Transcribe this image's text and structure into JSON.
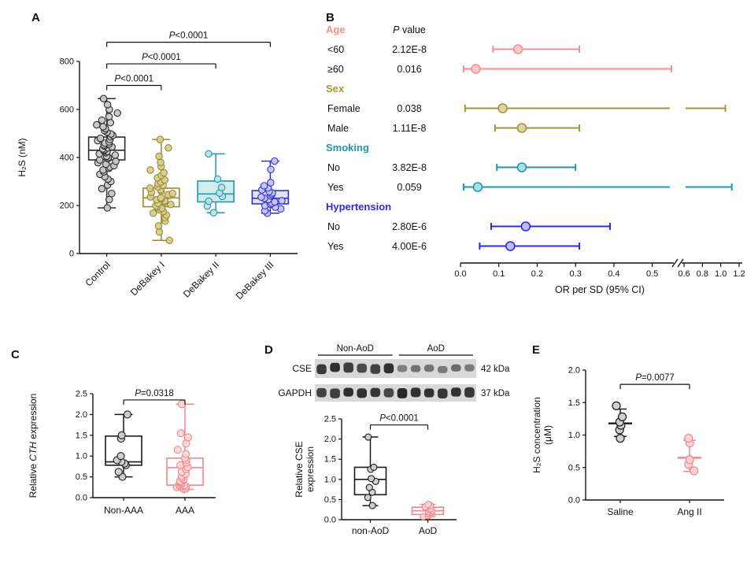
{
  "figure": {
    "panels": {
      "A": {
        "label": "A"
      },
      "B": {
        "label": "B"
      },
      "C": {
        "label": "C"
      },
      "D": {
        "label": "D"
      },
      "E": {
        "label": "E"
      }
    },
    "blot": {
      "group_labels": [
        "Non-AoD",
        "AoD"
      ],
      "rows": [
        {
          "protein": "CSE",
          "weight": "42 kDa"
        },
        {
          "protein": "GAPDH",
          "weight": "37 kDa"
        }
      ],
      "lanes_per_group": 6
    }
  },
  "chart_data": [
    {
      "id": "A",
      "type": "boxplot-scatter",
      "ylabel_lines": [
        [
          {
            "t": "H₂S (nM)",
            "i": false
          }
        ]
      ],
      "ylim": [
        0,
        800
      ],
      "yticks": [
        0,
        200,
        400,
        600,
        800
      ],
      "ydecimals": 0,
      "categories": [
        "Control",
        "DeBakey I",
        "DeBakey II",
        "DeBakey III"
      ],
      "strokes": [
        "#2b2b2b",
        "#9a8c2e",
        "#1b9aab",
        "#3030dd"
      ],
      "fills": [
        "#c8c8c8",
        "#d6cd8f",
        "#bfe3e9",
        "#c6c6f6"
      ],
      "box_fills": [
        "none",
        "none",
        "#d2ebef",
        "#e2e2fb"
      ],
      "boxes": [
        {
          "q1": 390,
          "median": 430,
          "q3": 485,
          "whisker_low": 190,
          "whisker_high": 645
        },
        {
          "q1": 195,
          "median": 232,
          "q3": 272,
          "whisker_low": 55,
          "whisker_high": 475
        },
        {
          "q1": 215,
          "median": 248,
          "q3": 302,
          "whisker_low": 170,
          "whisker_high": 415
        },
        {
          "q1": 207,
          "median": 230,
          "q3": 262,
          "whisker_low": 168,
          "whisker_high": 385
        }
      ],
      "points": [
        [
          190,
          225,
          250,
          270,
          285,
          300,
          310,
          320,
          330,
          340,
          348,
          355,
          360,
          366,
          372,
          378,
          384,
          390,
          395,
          400,
          405,
          410,
          415,
          420,
          424,
          428,
          432,
          436,
          440,
          444,
          448,
          452,
          456,
          460,
          465,
          470,
          475,
          480,
          486,
          492,
          498,
          505,
          512,
          520,
          528,
          536,
          545,
          555,
          570,
          585,
          600,
          620,
          645
        ],
        [
          55,
          90,
          115,
          135,
          150,
          160,
          168,
          175,
          182,
          188,
          194,
          199,
          204,
          209,
          214,
          219,
          224,
          228,
          232,
          236,
          240,
          245,
          250,
          255,
          260,
          266,
          272,
          278,
          284,
          291,
          298,
          306,
          315,
          325,
          336,
          348,
          362,
          380,
          405,
          440,
          475
        ],
        [
          170,
          198,
          218,
          238,
          252,
          275,
          310,
          415
        ],
        [
          168,
          178,
          186,
          193,
          199,
          205,
          210,
          215,
          220,
          225,
          230,
          235,
          240,
          246,
          252,
          258,
          265,
          273,
          282,
          295,
          350,
          385
        ]
      ],
      "significance": [
        {
          "from": 0,
          "to": 1,
          "label": "P<0.0001",
          "y": 700
        },
        {
          "from": 0,
          "to": 2,
          "label": "P<0.0001",
          "y": 790
        },
        {
          "from": 0,
          "to": 3,
          "label": "P<0.0001",
          "y": 880
        }
      ]
    },
    {
      "id": "B",
      "type": "forest",
      "xlabel": "OR per SD (95% CI)",
      "pvalue_header": "P value",
      "xticks_left": [
        0,
        0.1,
        0.2,
        0.3,
        0.4,
        0.5
      ],
      "xticks_right": [
        0.6,
        0.8,
        1.0,
        1.2
      ],
      "axis_break": {
        "left_max": 0.55,
        "right_min": 0.6,
        "right_max": 1.2
      },
      "rows": [
        {
          "type": "header",
          "label": "Age",
          "color": "#f58f93"
        },
        {
          "type": "data",
          "label": "<60",
          "p": "2.12E-8",
          "or": 0.15,
          "lo": 0.085,
          "hi": 0.31,
          "color": "#f58f93",
          "fill": "#fbc9cb"
        },
        {
          "type": "data",
          "label": "≥60",
          "p": "0.016",
          "or": 0.04,
          "lo": 0.008,
          "hi": 0.55,
          "color": "#f58f93",
          "fill": "#fbc9cb"
        },
        {
          "type": "header",
          "label": "Sex",
          "color": "#a2953a"
        },
        {
          "type": "data",
          "label": "Female",
          "p": "0.038",
          "or": 0.11,
          "lo": 0.012,
          "hi": 1.05,
          "color": "#a2953a",
          "fill": "#ddd6a2"
        },
        {
          "type": "data",
          "label": "Male",
          "p": "1.11E-8",
          "or": 0.16,
          "lo": 0.09,
          "hi": 0.31,
          "color": "#a2953a",
          "fill": "#ddd6a2"
        },
        {
          "type": "header",
          "label": "Smoking",
          "color": "#1b9aab"
        },
        {
          "type": "data",
          "label": "No",
          "p": "3.82E-8",
          "or": 0.16,
          "lo": 0.095,
          "hi": 0.3,
          "color": "#1b9aab",
          "fill": "#abdde4"
        },
        {
          "type": "data",
          "label": "Yes",
          "p": "0.059",
          "or": 0.045,
          "lo": 0.008,
          "hi": 1.12,
          "color": "#1b9aab",
          "fill": "#abdde4"
        },
        {
          "type": "header",
          "label": "Hypertension",
          "color": "#2a2aee"
        },
        {
          "type": "data",
          "label": "No",
          "p": "2.80E-6",
          "or": 0.17,
          "lo": 0.08,
          "hi": 0.39,
          "color": "#2a2aee",
          "fill": "#bcbcf8"
        },
        {
          "type": "data",
          "label": "Yes",
          "p": "4.00E-6",
          "or": 0.13,
          "lo": 0.05,
          "hi": 0.31,
          "color": "#2a2aee",
          "fill": "#bcbcf8"
        }
      ]
    },
    {
      "id": "C",
      "type": "boxplot-scatter",
      "ylabel_lines": [
        [
          {
            "t": "Relative ",
            "i": false
          },
          {
            "t": "CTH",
            "i": true
          },
          {
            "t": " expression",
            "i": false
          }
        ]
      ],
      "ylim": [
        0,
        2.5
      ],
      "yticks": [
        0,
        0.5,
        1.0,
        1.5,
        2.0,
        2.5
      ],
      "ydecimals": 1,
      "categories": [
        "Non-AAA",
        "AAA"
      ],
      "strokes": [
        "#1a1a1a",
        "#f4868a"
      ],
      "fills": [
        "#cfcfcf",
        "#fcd7d8"
      ],
      "box_fills": [
        "none",
        "none"
      ],
      "boxes": [
        {
          "q1": 0.78,
          "median": 0.86,
          "q3": 1.48,
          "whisker_low": 0.5,
          "whisker_high": 2.0
        },
        {
          "q1": 0.3,
          "median": 0.72,
          "q3": 0.95,
          "whisker_low": 0.2,
          "whisker_high": 2.25
        }
      ],
      "points": [
        [
          0.5,
          0.62,
          0.78,
          0.82,
          0.86,
          0.9,
          1.0,
          1.42,
          1.5,
          2.0
        ],
        [
          0.2,
          0.22,
          0.25,
          0.27,
          0.28,
          0.3,
          0.31,
          0.33,
          0.35,
          0.37,
          0.4,
          0.44,
          0.48,
          0.52,
          0.57,
          0.62,
          0.68,
          0.73,
          0.78,
          0.84,
          0.9,
          0.95,
          1.05,
          1.15,
          1.3,
          1.45,
          1.55,
          2.25
        ]
      ],
      "significance": [
        {
          "from": 0,
          "to": 1,
          "label": "P=0.0318",
          "y": 2.35
        }
      ]
    },
    {
      "id": "D",
      "type": "boxplot-scatter",
      "ylabel_lines": [
        [
          {
            "t": "Relative CSE",
            "i": false
          }
        ],
        [
          {
            "t": "expression",
            "i": false
          }
        ]
      ],
      "ylim": [
        0,
        2.5
      ],
      "yticks": [
        0,
        0.5,
        1.0,
        1.5,
        2.0,
        2.5
      ],
      "ydecimals": 1,
      "categories": [
        "non-AoD",
        "AoD"
      ],
      "strokes": [
        "#1a1a1a",
        "#f4868a"
      ],
      "fills": [
        "#cfcfcf",
        "#fcd7d8"
      ],
      "box_fills": [
        "none",
        "none"
      ],
      "boxes": [
        {
          "q1": 0.62,
          "median": 1.0,
          "q3": 1.3,
          "whisker_low": 0.35,
          "whisker_high": 2.05
        },
        {
          "q1": 0.13,
          "median": 0.22,
          "q3": 0.31,
          "whisker_low": 0.08,
          "whisker_high": 0.38
        }
      ],
      "points": [
        [
          0.35,
          0.55,
          0.68,
          0.8,
          0.95,
          1.02,
          1.25,
          1.3,
          2.05
        ],
        [
          0.08,
          0.1,
          0.13,
          0.16,
          0.18,
          0.2,
          0.22,
          0.25,
          0.27,
          0.3,
          0.32,
          0.35,
          0.38
        ]
      ],
      "significance": [
        {
          "from": 0,
          "to": 1,
          "label": "P<0.0001",
          "y": 2.35
        }
      ]
    },
    {
      "id": "E",
      "type": "dot-mean",
      "ylabel_lines": [
        [
          {
            "t": "H₂S concentration",
            "i": false
          }
        ],
        [
          {
            "t": "(μM)",
            "i": false
          }
        ]
      ],
      "ylim": [
        0,
        2.0
      ],
      "yticks": [
        0,
        0.5,
        1.0,
        1.5,
        2.0
      ],
      "ydecimals": 1,
      "categories": [
        "Saline",
        "Ang II"
      ],
      "strokes": [
        "#1a1a1a",
        "#f4868a"
      ],
      "fills": [
        "#d0d0d0",
        "#fbd4d6"
      ],
      "groups": [
        {
          "points": [
            0.95,
            1.08,
            1.15,
            1.2,
            1.28,
            1.45
          ],
          "mean": 1.18,
          "sd_low": 0.98,
          "sd_high": 1.4
        },
        {
          "points": [
            0.45,
            0.55,
            0.62,
            0.88,
            0.95
          ],
          "mean": 0.65,
          "sd_low": 0.44,
          "sd_high": 0.92
        }
      ],
      "significance": [
        {
          "from": 0,
          "to": 1,
          "label": "P=0.0077",
          "y": 1.78
        }
      ]
    }
  ]
}
